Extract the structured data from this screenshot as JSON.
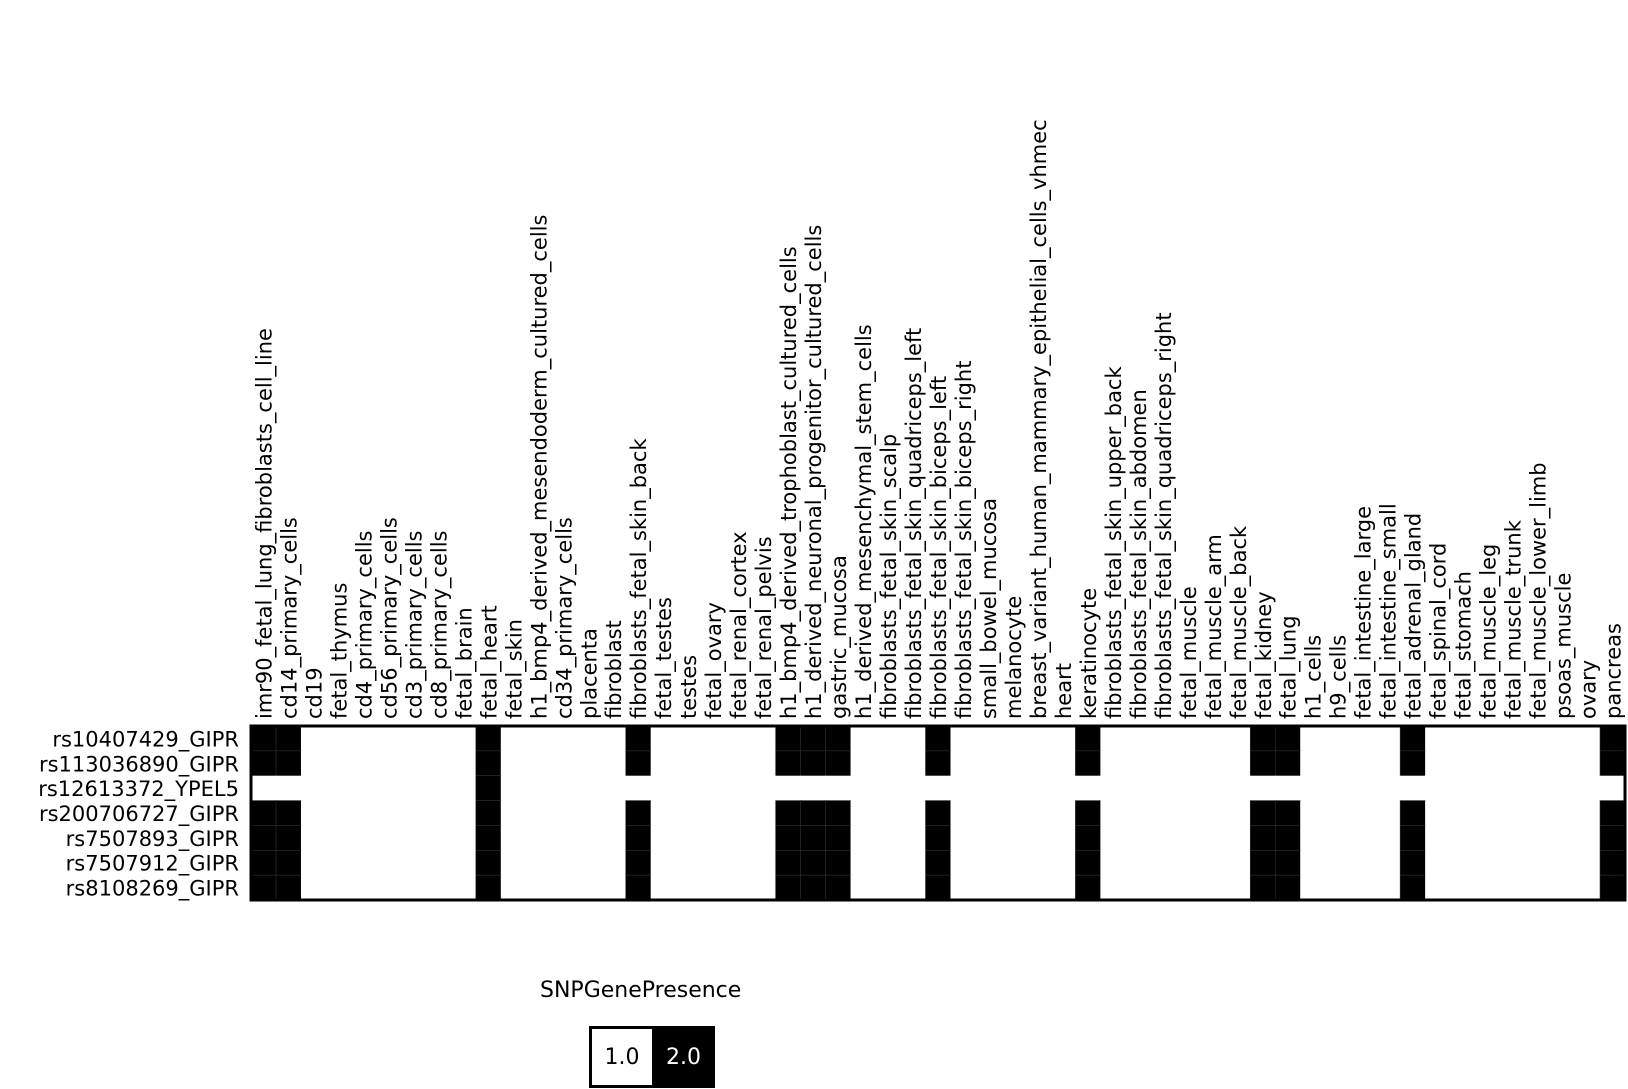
{
  "chart_data": {
    "type": "heatmap",
    "columns": [
      "imr90_fetal_lung_fibroblasts_cell_line",
      "cd14_primary_cells",
      "cd19",
      "fetal_thymus",
      "cd4_primary_cells",
      "cd56_primary_cells",
      "cd3_primary_cells",
      "cd8_primary_cells",
      "fetal_brain",
      "fetal_heart",
      "fetal_skin",
      "h1_bmp4_derived_mesendoderm_cultured_cells",
      "cd34_primary_cells",
      "placenta",
      "fibroblast",
      "fibroblasts_fetal_skin_back",
      "fetal_testes",
      "testes",
      "fetal_ovary",
      "fetal_renal_cortex",
      "fetal_renal_pelvis",
      "h1_bmp4_derived_trophoblast_cultured_cells",
      "h1_derived_neuronal_progenitor_cultured_cells",
      "gastric_mucosa",
      "h1_derived_mesenchymal_stem_cells",
      "fibroblasts_fetal_skin_scalp",
      "fibroblasts_fetal_skin_quadriceps_left",
      "fibroblasts_fetal_skin_biceps_left",
      "fibroblasts_fetal_skin_biceps_right",
      "small_bowel_mucosa",
      "melanocyte",
      "breast_variant_human_mammary_epithelial_cells_vhmec",
      "heart",
      "keratinocyte",
      "fibroblasts_fetal_skin_upper_back",
      "fibroblasts_fetal_skin_abdomen",
      "fibroblasts_fetal_skin_quadriceps_right",
      "fetal_muscle",
      "fetal_muscle_arm",
      "fetal_muscle_back",
      "fetal_kidney",
      "fetal_lung",
      "h1_cells",
      "h9_cells",
      "fetal_intestine_large",
      "fetal_intestine_small",
      "fetal_adrenal_gland",
      "fetal_spinal_cord",
      "fetal_stomach",
      "fetal_muscle_leg",
      "fetal_muscle_trunk",
      "fetal_muscle_lower_limb",
      "psoas_muscle",
      "ovary",
      "pancreas"
    ],
    "rows": [
      "rs10407429_GIPR",
      "rs113036890_GIPR",
      "rs12613372_YPEL5",
      "rs200706727_GIPR",
      "rs7507893_GIPR",
      "rs7507912_GIPR",
      "rs8108269_GIPR"
    ],
    "values": [
      [
        2,
        2,
        1,
        1,
        1,
        1,
        1,
        1,
        1,
        2,
        1,
        1,
        1,
        1,
        1,
        2,
        1,
        1,
        1,
        1,
        1,
        2,
        2,
        2,
        1,
        1,
        1,
        2,
        1,
        1,
        1,
        1,
        1,
        2,
        1,
        1,
        1,
        1,
        1,
        1,
        2,
        2,
        1,
        1,
        1,
        1,
        2,
        1,
        1,
        1,
        1,
        1,
        1,
        1,
        2
      ],
      [
        2,
        2,
        1,
        1,
        1,
        1,
        1,
        1,
        1,
        2,
        1,
        1,
        1,
        1,
        1,
        2,
        1,
        1,
        1,
        1,
        1,
        2,
        2,
        2,
        1,
        1,
        1,
        2,
        1,
        1,
        1,
        1,
        1,
        2,
        1,
        1,
        1,
        1,
        1,
        1,
        2,
        2,
        1,
        1,
        1,
        1,
        2,
        1,
        1,
        1,
        1,
        1,
        1,
        1,
        2
      ],
      [
        1,
        1,
        1,
        1,
        1,
        1,
        1,
        1,
        1,
        2,
        1,
        1,
        1,
        1,
        1,
        1,
        1,
        1,
        1,
        1,
        1,
        1,
        1,
        1,
        1,
        1,
        1,
        1,
        1,
        1,
        1,
        1,
        1,
        1,
        1,
        1,
        1,
        1,
        1,
        1,
        1,
        1,
        1,
        1,
        1,
        1,
        1,
        1,
        1,
        1,
        1,
        1,
        1,
        1,
        1
      ],
      [
        2,
        2,
        1,
        1,
        1,
        1,
        1,
        1,
        1,
        2,
        1,
        1,
        1,
        1,
        1,
        2,
        1,
        1,
        1,
        1,
        1,
        2,
        2,
        2,
        1,
        1,
        1,
        2,
        1,
        1,
        1,
        1,
        1,
        2,
        1,
        1,
        1,
        1,
        1,
        1,
        2,
        2,
        1,
        1,
        1,
        1,
        2,
        1,
        1,
        1,
        1,
        1,
        1,
        1,
        2
      ],
      [
        2,
        2,
        1,
        1,
        1,
        1,
        1,
        1,
        1,
        2,
        1,
        1,
        1,
        1,
        1,
        2,
        1,
        1,
        1,
        1,
        1,
        2,
        2,
        2,
        1,
        1,
        1,
        2,
        1,
        1,
        1,
        1,
        1,
        2,
        1,
        1,
        1,
        1,
        1,
        1,
        2,
        2,
        1,
        1,
        1,
        1,
        2,
        1,
        1,
        1,
        1,
        1,
        1,
        1,
        2
      ],
      [
        2,
        2,
        1,
        1,
        1,
        1,
        1,
        1,
        1,
        2,
        1,
        1,
        1,
        1,
        1,
        2,
        1,
        1,
        1,
        1,
        1,
        2,
        2,
        2,
        1,
        1,
        1,
        2,
        1,
        1,
        1,
        1,
        1,
        2,
        1,
        1,
        1,
        1,
        1,
        1,
        2,
        2,
        1,
        1,
        1,
        1,
        2,
        1,
        1,
        1,
        1,
        1,
        1,
        1,
        2
      ],
      [
        2,
        2,
        1,
        1,
        1,
        1,
        1,
        1,
        1,
        2,
        1,
        1,
        1,
        1,
        1,
        2,
        1,
        1,
        1,
        1,
        1,
        2,
        2,
        2,
        1,
        1,
        1,
        2,
        1,
        1,
        1,
        1,
        1,
        2,
        1,
        1,
        1,
        1,
        1,
        1,
        2,
        2,
        1,
        1,
        1,
        1,
        2,
        1,
        1,
        1,
        1,
        1,
        1,
        1,
        2
      ]
    ],
    "legend": {
      "title": "SNPGenePresence",
      "labels": [
        "1.0",
        "2.0"
      ],
      "colors": [
        "#ffffff",
        "#000000"
      ]
    },
    "grid": false
  }
}
